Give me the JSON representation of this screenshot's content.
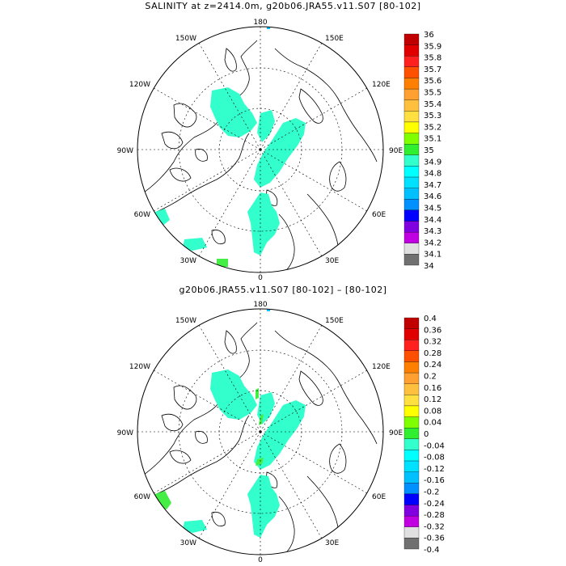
{
  "panels": [
    {
      "title": "SALINITY at z=2414.0m, g20b06.JRA55.v11.S07 [80-102]",
      "colorbar": {
        "labels": [
          "36",
          "35.9",
          "35.8",
          "35.7",
          "35.6",
          "35.5",
          "35.4",
          "35.3",
          "35.2",
          "35.1",
          "35",
          "34.9",
          "34.8",
          "34.7",
          "34.6",
          "34.5",
          "34.4",
          "34.3",
          "34.2",
          "34.1",
          "34"
        ]
      },
      "field_color": "#33ffcc",
      "extra_color": "#44ee44"
    },
    {
      "title": "g20b06.JRA55.v11.S07 [80-102] –  [80-102]",
      "colorbar": {
        "labels": [
          "0.4",
          "0.36",
          "0.32",
          "0.28",
          "0.24",
          "0.2",
          "0.16",
          "0.12",
          "0.08",
          "0.04",
          "0",
          "-0.04",
          "-0.08",
          "-0.12",
          "-0.16",
          "-0.2",
          "-0.24",
          "-0.28",
          "-0.32",
          "-0.36",
          "-0.4"
        ]
      },
      "field_color": "#33ffcc",
      "extra_color": "#44ee44"
    }
  ],
  "lon_labels": {
    "n180": "180",
    "n150e": "150E",
    "n120e": "120E",
    "n90e": "90E",
    "n60e": "60E",
    "n30e": "30E",
    "n0": "0",
    "n30w": "30W",
    "n60w": "60W",
    "n90w": "90W",
    "n120w": "120W",
    "n150w": "150W"
  },
  "colorbar_colors": [
    "#c00000",
    "#e00000",
    "#ff2020",
    "#ff5000",
    "#ff8000",
    "#ffa030",
    "#ffc040",
    "#ffe040",
    "#ffff00",
    "#80ff00",
    "#30ee30",
    "#33ffcc",
    "#00ffff",
    "#00e0ff",
    "#00c0ff",
    "#0090ff",
    "#0000ff",
    "#8000e0",
    "#c000e0",
    "#e0e0e0",
    "#707070"
  ]
}
